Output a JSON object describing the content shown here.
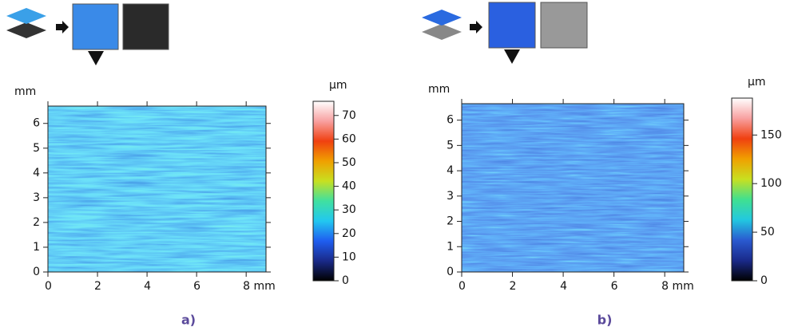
{
  "chart_data": [
    {
      "type": "heatmap",
      "ylabel": "mm",
      "colorbar_label": "µm",
      "caption": "a)",
      "xlim": [
        0,
        8.8
      ],
      "xticks": [
        0,
        2,
        4,
        6,
        {
          "value": 8,
          "label": "8 mm"
        }
      ],
      "ylim": [
        0,
        6.7
      ],
      "yticks": [
        0,
        1,
        2,
        3,
        4,
        5,
        6
      ],
      "zlim": [
        0,
        76
      ],
      "zticks": [
        0,
        10,
        20,
        30,
        40,
        50,
        60,
        70
      ],
      "colorscale": [
        "#000000",
        "#1a2a8a",
        "#1f5ef0",
        "#22c8f0",
        "#40e0a0",
        "#c8e020",
        "#f0a000",
        "#f04010",
        "#f8a0a0",
        "#ffffff"
      ]
    },
    {
      "type": "heatmap",
      "ylabel": "mm",
      "colorbar_label": "µm",
      "caption": "b)",
      "xlim": [
        0,
        8.75
      ],
      "xticks": [
        0,
        2,
        4,
        6,
        {
          "value": 8,
          "label": "8 mm"
        }
      ],
      "ylim": [
        0,
        6.65
      ],
      "yticks": [
        0,
        1,
        2,
        3,
        4,
        5,
        6
      ],
      "zlim": [
        0,
        188
      ],
      "zticks": [
        0,
        50,
        100,
        150
      ],
      "colorscale": [
        "#000000",
        "#1a2a8a",
        "#2a5ad0",
        "#22c8e0",
        "#40e090",
        "#c8e020",
        "#f0a000",
        "#f04010",
        "#f8a0a0",
        "#ffffff"
      ]
    }
  ]
}
